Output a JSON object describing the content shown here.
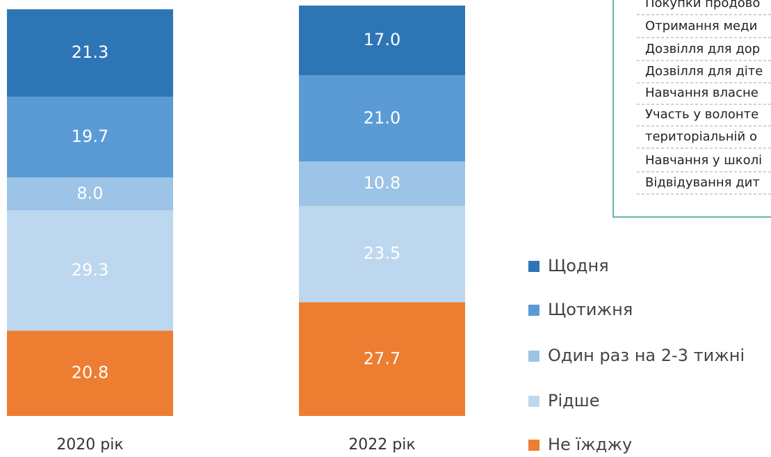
{
  "chart_data": {
    "type": "stacked_bar",
    "categories": [
      "2020 рік",
      "2022 рік"
    ],
    "ylim": [
      0,
      100
    ],
    "series": [
      {
        "name": "Щодня",
        "color": "#2e75b6",
        "values": [
          21.3,
          17.0
        ],
        "value_labels": [
          "21.3",
          "17.0"
        ]
      },
      {
        "name": "Щотижня",
        "color": "#5b9bd5",
        "values": [
          19.7,
          21.0
        ],
        "value_labels": [
          "19.7",
          "21.0"
        ]
      },
      {
        "name": "Один раз на 2-3 тижні",
        "color": "#9dc3e6",
        "values": [
          8.0,
          10.8
        ],
        "value_labels": [
          "8.0",
          "10.8"
        ]
      },
      {
        "name": "Рідше",
        "color": "#bdd7ee",
        "values": [
          29.3,
          23.5
        ],
        "value_labels": [
          "29.3",
          "23.5"
        ]
      },
      {
        "name": "Не їжджу",
        "color": "#ed7d31",
        "values": [
          20.8,
          27.7
        ],
        "value_labels": [
          "20.8",
          "27.7"
        ]
      }
    ]
  },
  "panel": {
    "lines": [
      "Покупки продово",
      "Отримання меди",
      "Дозвілля для дор",
      "Дозвілля для діте",
      "Навчання власне",
      "Участь у волонте",
      "територіальній о",
      "Навчання у школі",
      "Відвідування дит"
    ]
  }
}
